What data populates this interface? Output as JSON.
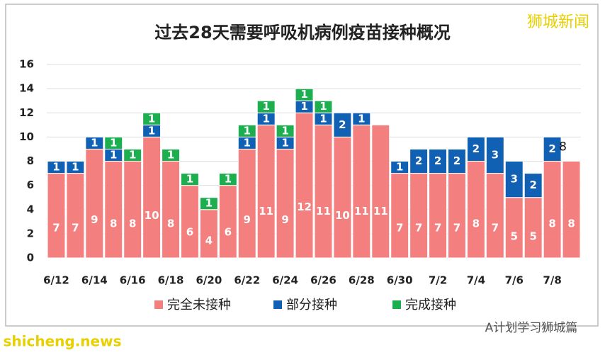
{
  "chart_data": {
    "type": "stacked-bar",
    "title": "过去28天需要呼吸机病例疫苗接种概况",
    "categories": [
      "6/12",
      null,
      "6/14",
      null,
      "6/16",
      null,
      "6/18",
      null,
      "6/20",
      null,
      "6/22",
      null,
      "6/24",
      null,
      "6/26",
      null,
      "6/28",
      null,
      "6/30",
      null,
      "7/2",
      null,
      "7/4",
      null,
      "7/6",
      null,
      "7/8",
      null
    ],
    "series": [
      {
        "name": "完全未接种",
        "color": "#f47f7f",
        "values": [
          7,
          7,
          9,
          8,
          8,
          10,
          8,
          6,
          4,
          6,
          9,
          11,
          9,
          12,
          11,
          10,
          11,
          11,
          7,
          7,
          7,
          7,
          8,
          7,
          5,
          5,
          8,
          8
        ]
      },
      {
        "name": "部分接种",
        "color": "#1060b4",
        "values": [
          1,
          1,
          1,
          1,
          0,
          1,
          0,
          0,
          0,
          0,
          1,
          1,
          1,
          1,
          1,
          2,
          1,
          0,
          1,
          2,
          2,
          2,
          2,
          3,
          3,
          2,
          2,
          0
        ]
      },
      {
        "name": "完成接种",
        "color": "#1cae4f",
        "values": [
          0,
          0,
          0,
          1,
          1,
          1,
          1,
          1,
          1,
          1,
          1,
          1,
          1,
          1,
          1,
          0,
          0,
          0,
          0,
          0,
          0,
          0,
          0,
          0,
          0,
          0,
          0,
          0
        ]
      }
    ],
    "annotation": "8",
    "ylim": [
      0,
      16
    ],
    "yticks": [
      0,
      2,
      4,
      6,
      8,
      10,
      12,
      14,
      16
    ],
    "grid": true,
    "brand": "狮城新闻",
    "source": "A计划学习狮城篇",
    "watermark": "shicheng.news"
  }
}
